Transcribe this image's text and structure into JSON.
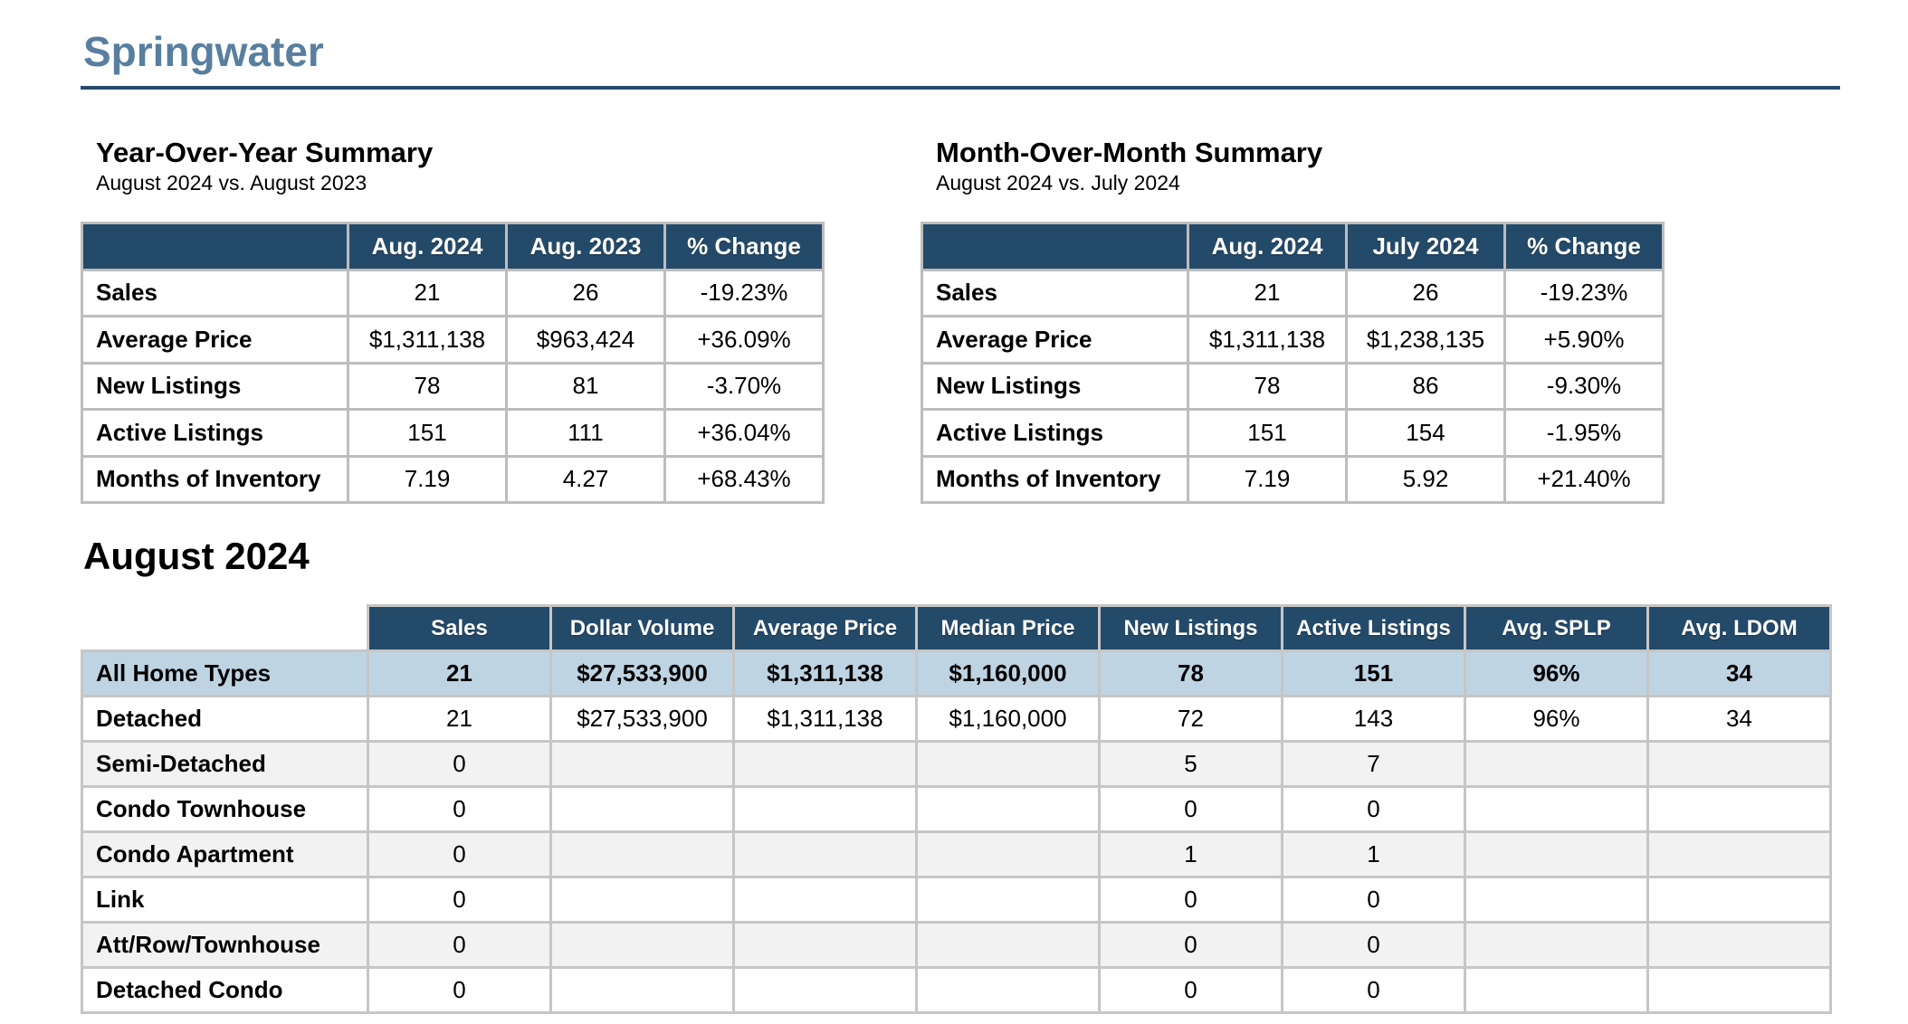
{
  "page": {
    "title": "Springwater"
  },
  "yoy": {
    "heading": "Year-Over-Year Summary",
    "subheading": "August 2024 vs. August 2023",
    "columns": [
      "Aug. 2024",
      "Aug. 2023",
      "% Change"
    ],
    "rows": [
      {
        "label": "Sales",
        "cells": [
          "21",
          "26",
          "-19.23%"
        ]
      },
      {
        "label": "Average Price",
        "cells": [
          "$1,311,138",
          "$963,424",
          "+36.09%"
        ]
      },
      {
        "label": "New Listings",
        "cells": [
          "78",
          "81",
          "-3.70%"
        ]
      },
      {
        "label": "Active Listings",
        "cells": [
          "151",
          "111",
          "+36.04%"
        ]
      },
      {
        "label": "Months of Inventory",
        "cells": [
          "7.19",
          "4.27",
          "+68.43%"
        ]
      }
    ]
  },
  "mom": {
    "heading": "Month-Over-Month Summary",
    "subheading": "August 2024 vs. July 2024",
    "columns": [
      "Aug. 2024",
      "July 2024",
      "% Change"
    ],
    "rows": [
      {
        "label": "Sales",
        "cells": [
          "21",
          "26",
          "-19.23%"
        ]
      },
      {
        "label": "Average Price",
        "cells": [
          "$1,311,138",
          "$1,238,135",
          "+5.90%"
        ]
      },
      {
        "label": "New Listings",
        "cells": [
          "78",
          "86",
          "-9.30%"
        ]
      },
      {
        "label": "Active Listings",
        "cells": [
          "151",
          "154",
          "-1.95%"
        ]
      },
      {
        "label": "Months of Inventory",
        "cells": [
          "7.19",
          "5.92",
          "+21.40%"
        ]
      }
    ]
  },
  "monthly": {
    "heading": "August 2024",
    "columns": [
      "Sales",
      "Dollar Volume",
      "Average Price",
      "Median Price",
      "New Listings",
      "Active Listings",
      "Avg. SPLP",
      "Avg. LDOM"
    ],
    "rows": [
      {
        "label": "All Home Types",
        "cells": [
          "21",
          "$27,533,900",
          "$1,311,138",
          "$1,160,000",
          "78",
          "151",
          "96%",
          "34"
        ]
      },
      {
        "label": "Detached",
        "cells": [
          "21",
          "$27,533,900",
          "$1,311,138",
          "$1,160,000",
          "72",
          "143",
          "96%",
          "34"
        ]
      },
      {
        "label": "Semi-Detached",
        "cells": [
          "0",
          "",
          "",
          "",
          "5",
          "7",
          "",
          ""
        ]
      },
      {
        "label": "Condo Townhouse",
        "cells": [
          "0",
          "",
          "",
          "",
          "0",
          "0",
          "",
          ""
        ]
      },
      {
        "label": "Condo Apartment",
        "cells": [
          "0",
          "",
          "",
          "",
          "1",
          "1",
          "",
          ""
        ]
      },
      {
        "label": "Link",
        "cells": [
          "0",
          "",
          "",
          "",
          "0",
          "0",
          "",
          ""
        ]
      },
      {
        "label": "Att/Row/Townhouse",
        "cells": [
          "0",
          "",
          "",
          "",
          "0",
          "0",
          "",
          ""
        ]
      },
      {
        "label": "Detached Condo",
        "cells": [
          "0",
          "",
          "",
          "",
          "0",
          "0",
          "",
          ""
        ]
      }
    ]
  },
  "colors": {
    "header_bg": "#244a6a",
    "title": "#587fa0",
    "highlight_row": "#bfd4e3",
    "alt_row": "#f2f2f2",
    "border": "#c6c6c6"
  }
}
